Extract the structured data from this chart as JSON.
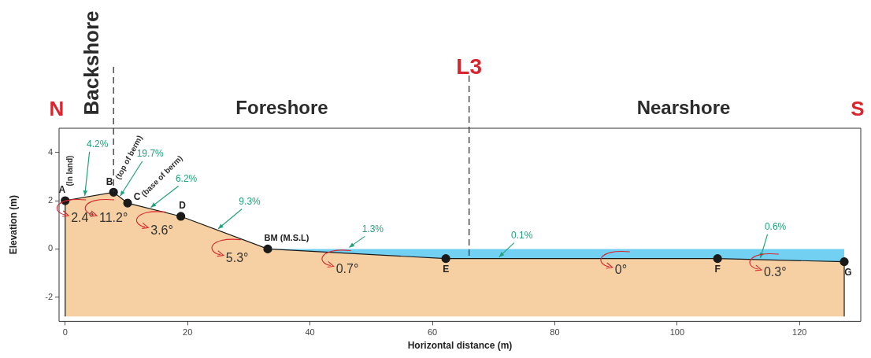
{
  "chart_data": {
    "type": "area",
    "xlabel": "Horizontal distance (m)",
    "ylabel": "Elevation (m)",
    "xlim": [
      -1,
      130
    ],
    "ylim": [
      -3,
      5
    ],
    "xticks": [
      0,
      20,
      40,
      60,
      80,
      100,
      120
    ],
    "yticks": [
      -2,
      0,
      2,
      4
    ],
    "grid": false,
    "series": [
      {
        "color": "#f6cfa2",
        "marker": "circle",
        "x": [
          0,
          0,
          7.9,
          10.2,
          18.9,
          33.1,
          62.2,
          106.6,
          127.3,
          127.3
        ],
        "values": [
          -2.8,
          2.0,
          2.35,
          1.9,
          1.35,
          0,
          -0.4,
          -0.4,
          -0.53,
          -2.8
        ],
        "value_labels": [
          null,
          "A",
          "B",
          "C",
          "D",
          "BM (M.S.L)",
          "E",
          "F",
          "G",
          null
        ]
      },
      {
        "color": "#72d0f2",
        "marker": "none",
        "x": [
          33.1,
          62.2,
          106.6,
          127.3,
          127.3
        ],
        "values": [
          0,
          -0.4,
          -0.4,
          -0.53,
          0
        ]
      }
    ],
    "ref_lines": [
      {
        "axis": "x",
        "value": 7.9,
        "line_style": "dashed"
      },
      {
        "axis": "x",
        "value": 66,
        "label": "L3",
        "line_style": "dashed"
      }
    ],
    "annotations": [
      "N",
      "Backshore",
      "Foreshore",
      "Nearshore",
      "S",
      {
        "text": "(In land)",
        "x": 0,
        "y": 2.0
      },
      {
        "text": "(top of berm)",
        "x": 7.9,
        "y": 2.35
      },
      {
        "text": "(base of berm)",
        "x": 10.2,
        "y": 1.9
      },
      {
        "text": "4.2%",
        "x": 3.2,
        "y": 2.14
      },
      {
        "text": "19.7%",
        "x": 9.0,
        "y": 2.13
      },
      {
        "text": "6.2%",
        "x": 14.0,
        "y": 1.66
      },
      {
        "text": "9.3%",
        "x": 25.0,
        "y": 0.77
      },
      {
        "text": "1.3%",
        "x": 46.4,
        "y": 0
      },
      {
        "text": "0.1%",
        "x": 70.9,
        "y": -0.4
      },
      {
        "text": "0.6%",
        "x": 113.6,
        "y": -0.44
      },
      "2.4°",
      "11.2°",
      "3.6°",
      "5.3°",
      "0.7°",
      "0°",
      "0.3°"
    ]
  }
}
